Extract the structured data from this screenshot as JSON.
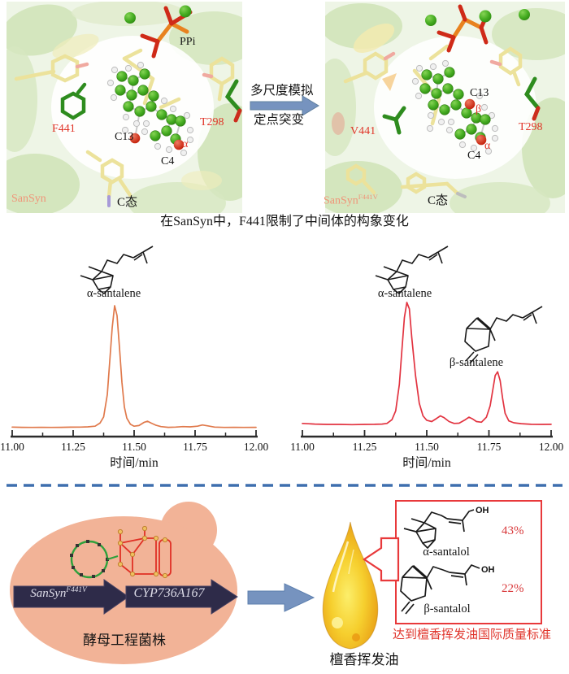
{
  "colors": {
    "trace_left": "#e0794b",
    "trace_right": "#e23340",
    "accent_red": "#e8393b",
    "label_red": "#e03428",
    "enzyme_salmon": "#f09478",
    "arrow_blue": "#7693bf",
    "dash_blue": "#3e6fae",
    "cell_peach": "#f2b397",
    "gene_arrow_navy": "#2e2b49"
  },
  "top": {
    "left_panel": {
      "ppi": "PPi",
      "residue1": "F441",
      "residue2": "T298",
      "c13": "C13",
      "alpha": "α",
      "c4": "C4",
      "enzyme": "SanSyn",
      "state": "C态"
    },
    "right_panel": {
      "c13": "C13",
      "beta": "β",
      "residue1": "V441",
      "residue2": "T298",
      "alpha": "α",
      "c4": "C4",
      "enzyme_base": "SanSyn",
      "enzyme_sup": "F441V",
      "state": "C态"
    },
    "arrow": {
      "line1": "多尺度模拟",
      "line2": "定点突变"
    },
    "caption": "在SanSyn中，F441限制了中间体的构象变化"
  },
  "chart_data": [
    {
      "type": "line",
      "name": "GC chromatogram - SanSyn",
      "xlabel": "时间/min",
      "xlim": [
        11.0,
        12.0
      ],
      "x_ticks": [
        "11.00",
        "11.25",
        "11.50",
        "11.75",
        "12.00"
      ],
      "grid": false,
      "peaks": [
        {
          "label": "α-santalene",
          "t": 11.42,
          "height": 1.0
        }
      ],
      "series": [
        {
          "name": "SanSyn",
          "color": "#e0794b",
          "points": [
            [
              11.0,
              0.018
            ],
            [
              11.04,
              0.016
            ],
            [
              11.08,
              0.015
            ],
            [
              11.12,
              0.016
            ],
            [
              11.16,
              0.015
            ],
            [
              11.2,
              0.016
            ],
            [
              11.24,
              0.017
            ],
            [
              11.28,
              0.018
            ],
            [
              11.31,
              0.02
            ],
            [
              11.34,
              0.025
            ],
            [
              11.36,
              0.05
            ],
            [
              11.375,
              0.1
            ],
            [
              11.39,
              0.28
            ],
            [
              11.4,
              0.55
            ],
            [
              11.41,
              0.82
            ],
            [
              11.42,
              1.0
            ],
            [
              11.43,
              0.92
            ],
            [
              11.44,
              0.66
            ],
            [
              11.45,
              0.38
            ],
            [
              11.46,
              0.18
            ],
            [
              11.47,
              0.09
            ],
            [
              11.485,
              0.04
            ],
            [
              11.5,
              0.025
            ],
            [
              11.52,
              0.03
            ],
            [
              11.54,
              0.055
            ],
            [
              11.555,
              0.065
            ],
            [
              11.57,
              0.05
            ],
            [
              11.59,
              0.032
            ],
            [
              11.61,
              0.022
            ],
            [
              11.64,
              0.016
            ],
            [
              11.67,
              0.018
            ],
            [
              11.7,
              0.022
            ],
            [
              11.73,
              0.02
            ],
            [
              11.76,
              0.025
            ],
            [
              11.78,
              0.035
            ],
            [
              11.8,
              0.028
            ],
            [
              11.83,
              0.018
            ],
            [
              11.87,
              0.015
            ],
            [
              11.91,
              0.016
            ],
            [
              11.95,
              0.015
            ],
            [
              12.0,
              0.016
            ]
          ]
        }
      ]
    },
    {
      "type": "line",
      "name": "GC chromatogram - SanSyn F441V",
      "xlabel": "时间/min",
      "xlim": [
        11.0,
        12.0
      ],
      "x_ticks": [
        "11.00",
        "11.25",
        "11.50",
        "11.75",
        "12.00"
      ],
      "grid": false,
      "peaks": [
        {
          "label": "α-santalene",
          "t": 11.42,
          "height": 1.0
        },
        {
          "label": "β-santalene",
          "t": 11.78,
          "height": 0.45
        }
      ],
      "series": [
        {
          "name": "SanSyn F441V",
          "color": "#e23340",
          "points": [
            [
              11.0,
              0.04
            ],
            [
              11.05,
              0.035
            ],
            [
              11.1,
              0.032
            ],
            [
              11.15,
              0.032
            ],
            [
              11.2,
              0.03
            ],
            [
              11.25,
              0.032
            ],
            [
              11.29,
              0.033
            ],
            [
              11.32,
              0.035
            ],
            [
              11.34,
              0.04
            ],
            [
              11.36,
              0.07
            ],
            [
              11.375,
              0.14
            ],
            [
              11.39,
              0.35
            ],
            [
              11.4,
              0.62
            ],
            [
              11.41,
              0.88
            ],
            [
              11.42,
              1.0
            ],
            [
              11.43,
              0.95
            ],
            [
              11.44,
              0.72
            ],
            [
              11.455,
              0.42
            ],
            [
              11.47,
              0.2
            ],
            [
              11.485,
              0.1
            ],
            [
              11.5,
              0.065
            ],
            [
              11.52,
              0.055
            ],
            [
              11.54,
              0.08
            ],
            [
              11.555,
              0.1
            ],
            [
              11.57,
              0.085
            ],
            [
              11.59,
              0.055
            ],
            [
              11.61,
              0.04
            ],
            [
              11.63,
              0.042
            ],
            [
              11.655,
              0.07
            ],
            [
              11.67,
              0.09
            ],
            [
              11.685,
              0.075
            ],
            [
              11.7,
              0.055
            ],
            [
              11.72,
              0.05
            ],
            [
              11.74,
              0.09
            ],
            [
              11.755,
              0.18
            ],
            [
              11.765,
              0.3
            ],
            [
              11.775,
              0.42
            ],
            [
              11.785,
              0.45
            ],
            [
              11.795,
              0.38
            ],
            [
              11.805,
              0.24
            ],
            [
              11.815,
              0.12
            ],
            [
              11.83,
              0.06
            ],
            [
              11.85,
              0.045
            ],
            [
              11.88,
              0.038
            ],
            [
              11.92,
              0.033
            ],
            [
              11.96,
              0.032
            ],
            [
              12.0,
              0.033
            ]
          ]
        }
      ]
    }
  ],
  "bottom": {
    "cell_label": "酵母工程菌株",
    "gene1_base": "SanSyn",
    "gene1_sup": "F441V",
    "gene2": "CYP736A167",
    "droplet_label": "檀香挥发油",
    "panel": {
      "alpha_name": "α-santalol",
      "alpha_pct": "43%",
      "beta_name": "β-santalol",
      "beta_pct": "22%",
      "oh1": "OH",
      "oh2": "OH"
    },
    "note": "达到檀香挥发油国际质量标准"
  }
}
